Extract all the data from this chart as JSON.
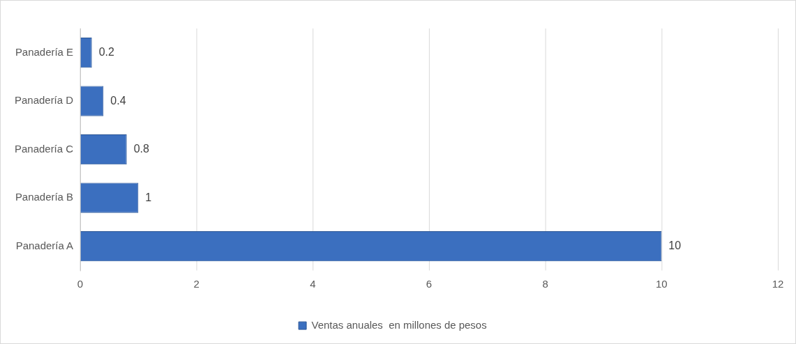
{
  "chart_data": {
    "type": "bar",
    "orientation": "horizontal",
    "categories": [
      "Panadería E",
      "Panadería D",
      "Panadería C",
      "Panadería B",
      "Panadería A"
    ],
    "series": [
      {
        "name": "Ventas anuales  en millones de pesos",
        "color": "#3b6fbf",
        "values": [
          0.2,
          0.4,
          0.8,
          1,
          10
        ]
      }
    ],
    "xlim": [
      0,
      12
    ],
    "xticks": [
      0,
      2,
      4,
      6,
      8,
      10,
      12
    ],
    "grid": "x",
    "legend": "bottom",
    "data_labels": true
  }
}
